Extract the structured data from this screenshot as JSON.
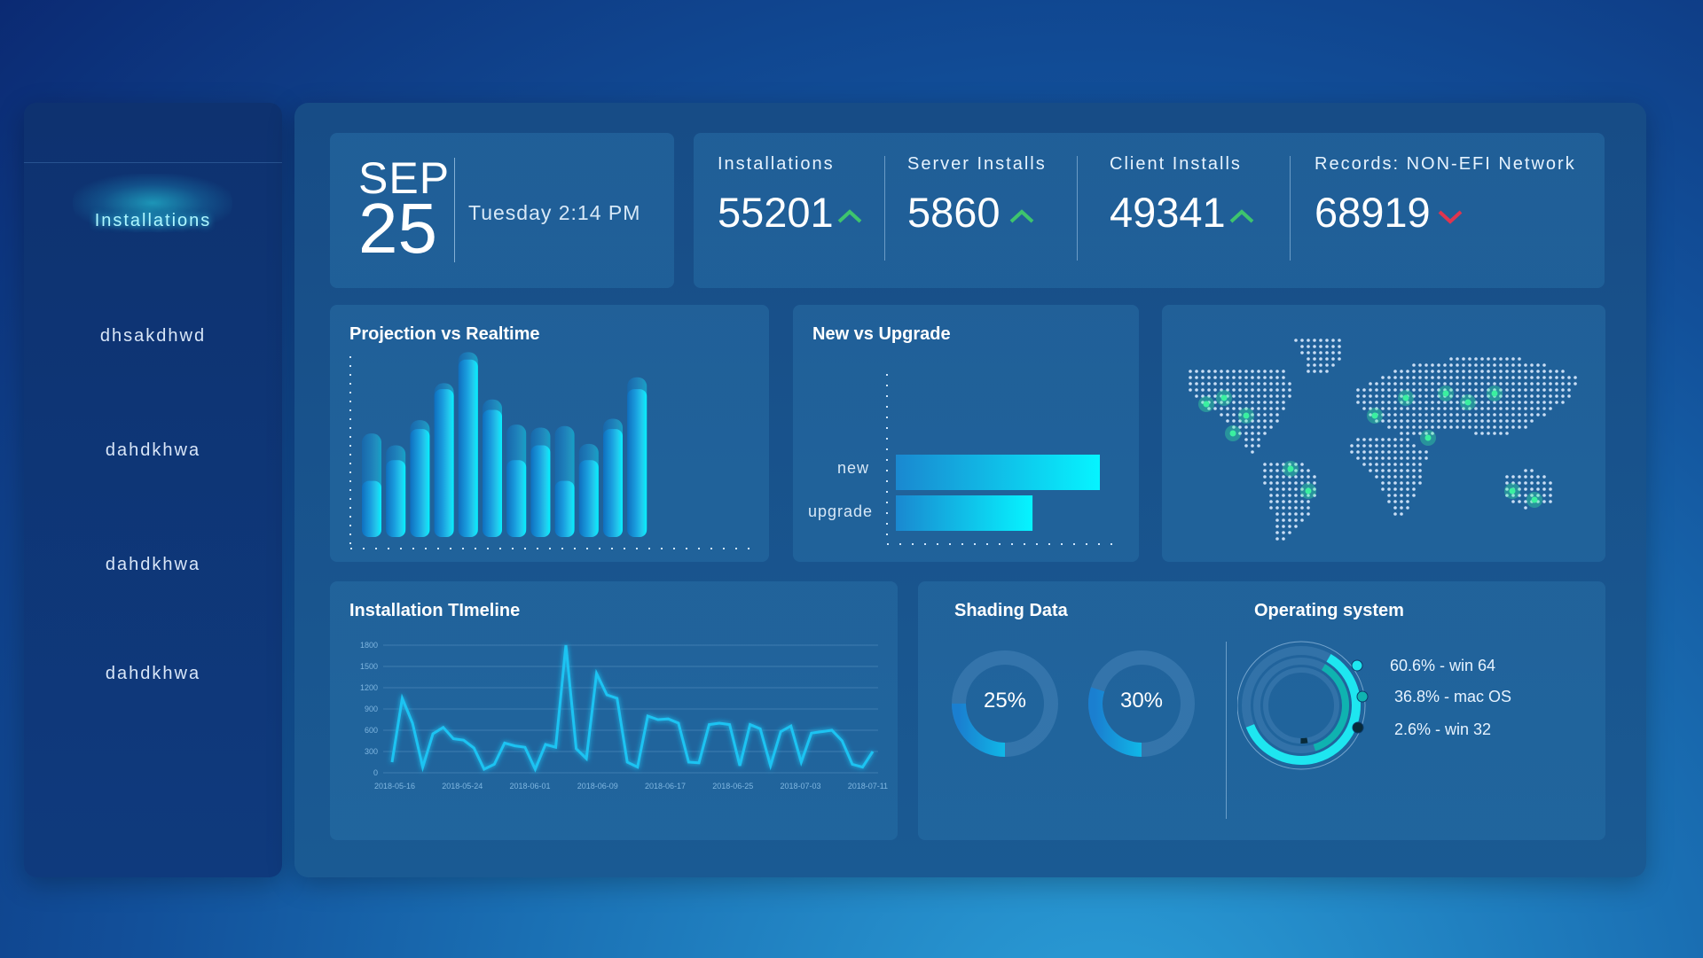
{
  "sidebar": {
    "items": [
      {
        "label": "Installations",
        "active": true
      },
      {
        "label": "dhsakdhwd",
        "active": false
      },
      {
        "label": "dahdkhwa",
        "active": false
      },
      {
        "label": "dahdkhwa",
        "active": false
      },
      {
        "label": "dahdkhwa",
        "active": false
      }
    ]
  },
  "date_card": {
    "month": "SEP",
    "day": "25",
    "time": "Tuesday 2:14 PM"
  },
  "stats": [
    {
      "label": "Installations",
      "value": "55201",
      "trend": "up",
      "trend_color": "#3ec46d"
    },
    {
      "label": "Server Installs",
      "value": "5860",
      "trend": "up",
      "trend_color": "#3ec46d"
    },
    {
      "label": "Client Installs",
      "value": "49341",
      "trend": "up",
      "trend_color": "#3ec46d"
    },
    {
      "label": "Records: NON-EFI Network",
      "value": "68919",
      "trend": "down",
      "trend_color": "#e0354f"
    }
  ],
  "projection_chart": {
    "title": "Projection vs Realtime",
    "chart_data": {
      "type": "bar",
      "series": [
        {
          "values": [
            7,
            6.2,
            7.9,
            10.4,
            12.5,
            9.3,
            7.6,
            7.4,
            7.5,
            6.3,
            8,
            10.8
          ]
        },
        {
          "values": [
            3.8,
            5.2,
            7.3,
            10,
            12,
            8.6,
            5.2,
            6.2,
            3.8,
            5.2,
            7.3,
            10
          ]
        }
      ],
      "colors": [
        "#0f6fbf",
        "#1a9fdf",
        "#23c8ec",
        "#06f0ff"
      ]
    }
  },
  "new_upgrade_chart": {
    "title": "New vs Upgrade",
    "chart_data": {
      "type": "bar",
      "orientation": "horizontal",
      "categories": [
        "new",
        "upgrade"
      ],
      "values": [
        100,
        67
      ]
    }
  },
  "timeline_chart": {
    "title": "Installation TImeline",
    "chart_data": {
      "type": "line",
      "y_ticks": [
        "1800",
        "1500",
        "1200",
        "900",
        "600",
        "300",
        "0"
      ],
      "ylim": [
        0,
        1800
      ],
      "x_ticks": [
        "2018-05-16",
        "2018-05-24",
        "2018-06-01",
        "2018-06-09",
        "2018-06-17",
        "2018-06-25",
        "2018-07-03",
        "2018-07-11"
      ],
      "values": [
        150,
        1050,
        700,
        80,
        550,
        640,
        480,
        460,
        350,
        50,
        120,
        420,
        380,
        360,
        50,
        400,
        360,
        1800,
        340,
        200,
        1400,
        1100,
        1050,
        150,
        80,
        800,
        750,
        760,
        700,
        150,
        140,
        680,
        700,
        680,
        100,
        680,
        620,
        100,
        580,
        660,
        150,
        560,
        580,
        600,
        450,
        120,
        80,
        300
      ]
    }
  },
  "shading_data": {
    "title": "Shading Data",
    "donuts": [
      {
        "label": "25%",
        "value": 25
      },
      {
        "label": "30%",
        "value": 30
      }
    ]
  },
  "os_chart": {
    "title": "Operating system",
    "chart_data": {
      "type": "pie",
      "slices": [
        {
          "label": "60.6%  - win 64",
          "value": 60.6,
          "color": "#1ee6f0"
        },
        {
          "label": "36.8% - mac OS",
          "value": 36.8,
          "color": "#0fb3b0"
        },
        {
          "label": "2.6% - win 32",
          "value": 2.6,
          "color": "#082b3a"
        }
      ]
    }
  },
  "map": {
    "icon": "world-map-dots",
    "highlight_color": "#3af0a0"
  }
}
